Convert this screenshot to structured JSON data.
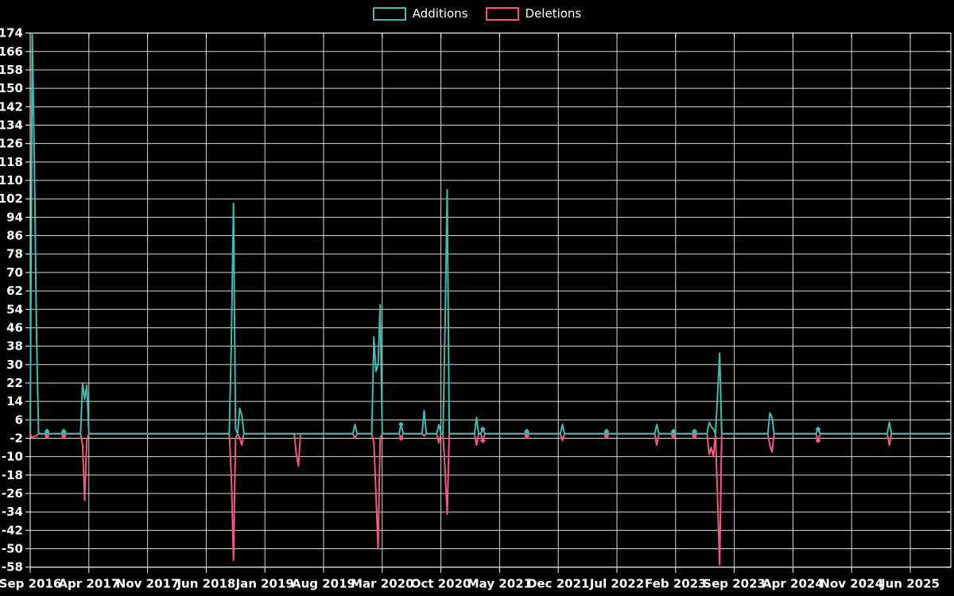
{
  "chart_data": {
    "type": "line",
    "title": "",
    "background_color": "#000000",
    "grid": true,
    "grid_color": "#ffffff",
    "text_color": "#ffffff",
    "legend_position": "top-center",
    "series": [
      {
        "name": "Additions",
        "key": "additions",
        "color": "#45b8b2"
      },
      {
        "name": "Deletions",
        "key": "deletions",
        "color": "#f2597f"
      }
    ],
    "x_axis": {
      "unit": "months since Sep 2016",
      "tick_step_months": 7,
      "tick_labels": [
        "Sep 2016",
        "Apr 2017",
        "Nov 2017",
        "Jun 2018",
        "Jan 2019",
        "Aug 2019",
        "Mar 2020",
        "Oct 2020",
        "May 2021",
        "Dec 2021",
        "Jul 2022",
        "Feb 2023",
        "Sep 2023",
        "Apr 2024",
        "Nov 2024",
        "Jun 2025"
      ]
    },
    "y_axis": {
      "min": -58,
      "max": 174,
      "tick_step": 8,
      "tick_labels": [
        174,
        166,
        158,
        150,
        142,
        134,
        126,
        118,
        110,
        102,
        94,
        86,
        78,
        70,
        62,
        54,
        46,
        38,
        30,
        22,
        14,
        6,
        -2,
        -10,
        -18,
        -26,
        -34,
        -42,
        -50,
        -58
      ]
    },
    "baseline": 0,
    "sample_step_months": 0.25,
    "end_month": 109.75,
    "events": [
      {
        "t": 0.25,
        "additions": 174,
        "deletions": -2
      },
      {
        "t": 0.5,
        "additions": 116,
        "deletions": -1
      },
      {
        "t": 0.75,
        "additions": 44,
        "deletions": -1
      },
      {
        "t": 2.0,
        "additions": 1,
        "deletions": -1,
        "marker": true
      },
      {
        "t": 4.0,
        "additions": 1,
        "deletions": -1,
        "marker": true
      },
      {
        "t": 6.25,
        "additions": 22,
        "deletions": -5
      },
      {
        "t": 6.5,
        "additions": 15,
        "deletions": -29
      },
      {
        "t": 6.75,
        "additions": 21,
        "deletions": -3
      },
      {
        "t": 24.0,
        "additions": 40,
        "deletions": -19
      },
      {
        "t": 24.25,
        "additions": 100,
        "deletions": -55
      },
      {
        "t": 24.5,
        "additions": 2,
        "deletions": -2
      },
      {
        "t": 25.0,
        "additions": 11,
        "deletions": -2
      },
      {
        "t": 25.25,
        "additions": 8,
        "deletions": -5
      },
      {
        "t": 31.75,
        "additions": 0,
        "deletions": -9
      },
      {
        "t": 32.0,
        "additions": 0,
        "deletions": -14
      },
      {
        "t": 38.75,
        "additions": 4,
        "deletions": -2
      },
      {
        "t": 41.0,
        "additions": 42,
        "deletions": -4
      },
      {
        "t": 41.25,
        "additions": 27,
        "deletions": -26
      },
      {
        "t": 41.5,
        "additions": 30,
        "deletions": -50
      },
      {
        "t": 41.75,
        "additions": 56,
        "deletions": -2
      },
      {
        "t": 44.25,
        "additions": 4,
        "deletions": -2,
        "marker": true
      },
      {
        "t": 47.0,
        "additions": 10,
        "deletions": -1
      },
      {
        "t": 48.75,
        "additions": 4,
        "deletions": -4
      },
      {
        "t": 49.5,
        "additions": 48,
        "deletions": -16
      },
      {
        "t": 49.75,
        "additions": 106,
        "deletions": -35
      },
      {
        "t": 53.25,
        "additions": 7,
        "deletions": -5
      },
      {
        "t": 54.0,
        "additions": 2,
        "deletions": -3,
        "marker": true
      },
      {
        "t": 59.25,
        "additions": 1,
        "deletions": -1,
        "marker": true
      },
      {
        "t": 63.5,
        "additions": 4,
        "deletions": -3
      },
      {
        "t": 68.75,
        "additions": 1,
        "deletions": -1,
        "marker": true
      },
      {
        "t": 74.75,
        "additions": 4,
        "deletions": -5
      },
      {
        "t": 76.75,
        "additions": 1,
        "deletions": -1,
        "marker": true
      },
      {
        "t": 79.25,
        "additions": 1,
        "deletions": -1,
        "marker": true
      },
      {
        "t": 81.0,
        "additions": 5,
        "deletions": -9
      },
      {
        "t": 81.25,
        "additions": 3,
        "deletions": -6
      },
      {
        "t": 81.5,
        "additions": 2,
        "deletions": -10
      },
      {
        "t": 82.0,
        "additions": 16,
        "deletions": -27
      },
      {
        "t": 82.25,
        "additions": 35,
        "deletions": -57
      },
      {
        "t": 88.25,
        "additions": 9,
        "deletions": -5
      },
      {
        "t": 88.5,
        "additions": 7,
        "deletions": -8
      },
      {
        "t": 94.0,
        "additions": 2,
        "deletions": -3,
        "marker": true
      },
      {
        "t": 102.5,
        "additions": 5,
        "deletions": -5
      }
    ]
  }
}
